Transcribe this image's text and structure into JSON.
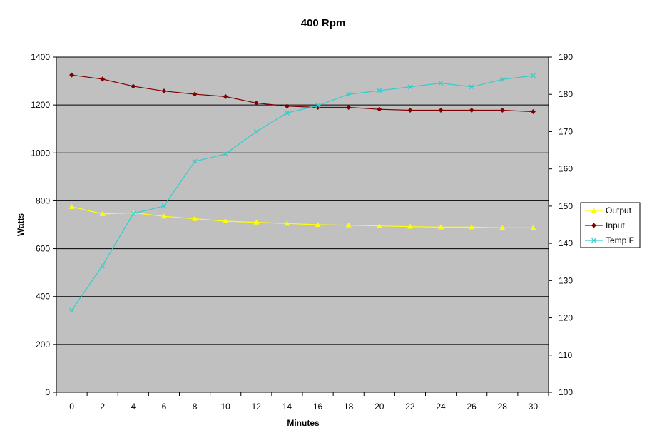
{
  "chart_data": {
    "type": "line",
    "title": "400 Rpm",
    "xlabel": "Minutes",
    "ylabel": "Watts",
    "y2label": "",
    "x": [
      0,
      2,
      4,
      6,
      8,
      10,
      12,
      14,
      16,
      18,
      20,
      22,
      24,
      26,
      28,
      30
    ],
    "x_ticks": [
      "0",
      "2",
      "4",
      "6",
      "8",
      "10",
      "12",
      "14",
      "16",
      "18",
      "20",
      "22",
      "24",
      "26",
      "28",
      "30"
    ],
    "ylim": [
      0,
      1400
    ],
    "y_ticks": [
      "0",
      "200",
      "400",
      "600",
      "800",
      "1000",
      "1200",
      "1400"
    ],
    "y2lim": [
      100,
      190
    ],
    "y2_ticks": [
      "100",
      "110",
      "120",
      "130",
      "140",
      "150",
      "160",
      "170",
      "180",
      "190"
    ],
    "grid": true,
    "legend_position": "right",
    "plot_background": "#c0c0c0",
    "series": [
      {
        "name": "Output",
        "axis": "left",
        "color": "#ffff00",
        "marker": "triangle",
        "values": [
          775,
          745,
          750,
          735,
          725,
          715,
          710,
          705,
          700,
          698,
          695,
          692,
          690,
          690,
          687,
          687
        ]
      },
      {
        "name": "Input",
        "axis": "left",
        "color": "#800000",
        "marker": "diamond",
        "values": [
          1325,
          1308,
          1278,
          1258,
          1245,
          1235,
          1208,
          1195,
          1190,
          1190,
          1182,
          1178,
          1178,
          1178,
          1178,
          1172
        ]
      },
      {
        "name": "Temp F",
        "axis": "right",
        "color": "#33cccc",
        "marker": "x",
        "values": [
          122,
          134,
          148,
          150,
          162,
          164,
          170,
          175,
          177,
          180,
          181,
          182,
          183,
          182,
          184,
          185
        ]
      }
    ]
  }
}
